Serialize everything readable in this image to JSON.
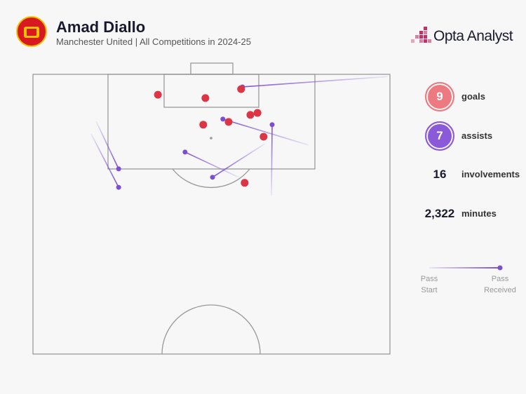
{
  "chart_data": {
    "type": "pitch-map",
    "title": "Amad Diallo",
    "subtitle": "Manchester United | All Competitions in 2024-25",
    "brand": "Opta Analyst",
    "goals": {
      "name": "goals",
      "color": "#dc3545",
      "x": [
        35.0,
        48.3,
        58.3,
        60.9,
        62.9,
        54.8,
        47.7,
        64.6,
        59.3
      ],
      "y": [
        7.3,
        8.5,
        5.3,
        14.5,
        13.8,
        17.0,
        18.0,
        22.3,
        38.8
      ]
    },
    "assists": {
      "name": "assists",
      "color": "#7b4fd0",
      "start_x": [
        99.4,
        77.2,
        66.8,
        65.0,
        57.6,
        17.7,
        16.3
      ],
      "start_y": [
        0.8,
        25.3,
        43.4,
        24.8,
        36.8,
        16.8,
        21.3
      ],
      "received_x": [
        58.7,
        53.2,
        67.0,
        50.3,
        42.6,
        24.0,
        24.0
      ],
      "received_y": [
        4.5,
        16.0,
        18.0,
        36.8,
        27.8,
        33.8,
        40.4
      ]
    },
    "stats": [
      {
        "value": "9",
        "label": "goals",
        "color": "#ec7a80"
      },
      {
        "value": "7",
        "label": "assists",
        "color": "#8b5ad9"
      },
      {
        "value": "16",
        "label": "involvements"
      },
      {
        "value": "2,322",
        "label": "minutes"
      }
    ],
    "legend": {
      "start": "Pass Start",
      "end": "Pass Received"
    }
  }
}
